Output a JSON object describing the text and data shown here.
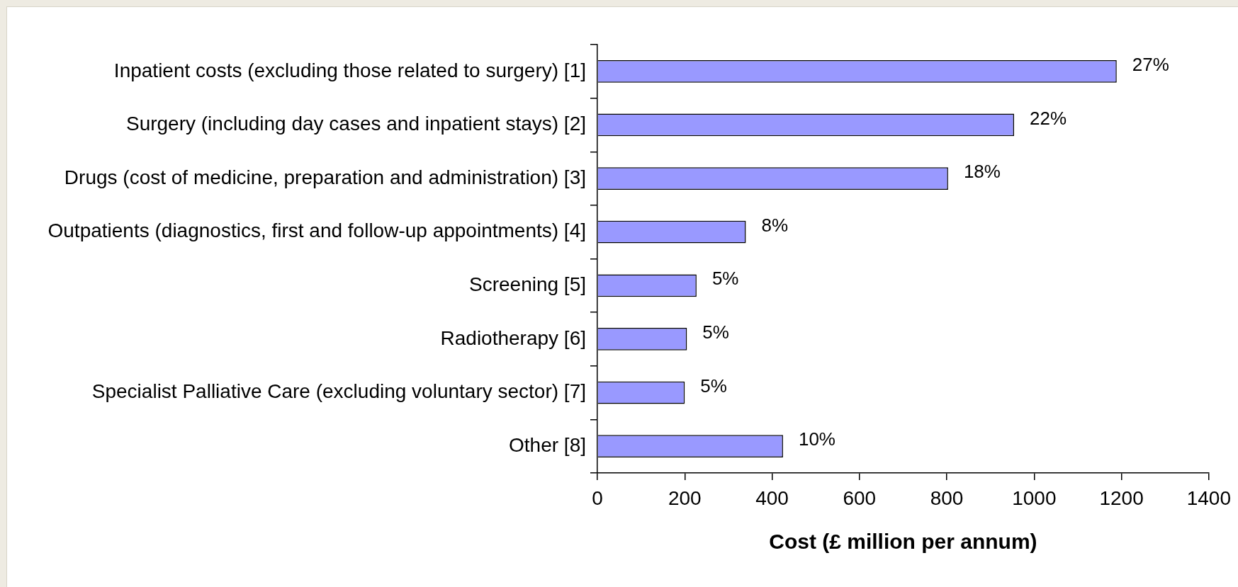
{
  "chart_data": {
    "type": "bar",
    "orientation": "horizontal",
    "categories": [
      "Inpatient costs (excluding those related to surgery) [1]",
      "Surgery (including day cases and inpatient stays) [2]",
      "Drugs (cost of medicine, preparation and administration) [3]",
      "Outpatients (diagnostics, first and follow-up appointments) [4]",
      "Screening [5]",
      "Radiotherapy [6]",
      "Specialist Palliative Care (excluding voluntary sector) [7]",
      "Other [8]"
    ],
    "values": [
      1189,
      954,
      803,
      340,
      227,
      205,
      200,
      425
    ],
    "annotations": [
      {
        "text": "27%",
        "x": 1189,
        "y": "Inpatient costs (excluding those related to surgery) [1]"
      },
      {
        "text": "22%",
        "x": 954,
        "y": "Surgery (including day cases and inpatient stays) [2]"
      },
      {
        "text": "18%",
        "x": 803,
        "y": "Drugs (cost of medicine, preparation and administration) [3]"
      },
      {
        "text": "8%",
        "x": 340,
        "y": "Outpatients (diagnostics, first and follow-up appointments) [4]"
      },
      {
        "text": "5%",
        "x": 227,
        "y": "Screening [5]"
      },
      {
        "text": "5%",
        "x": 205,
        "y": "Radiotherapy [6]"
      },
      {
        "text": "5%",
        "x": 200,
        "y": "Specialist Palliative Care (excluding voluntary sector) [7]"
      },
      {
        "text": "10%",
        "x": 425,
        "y": "Other [8]"
      }
    ],
    "color": "#9999ff",
    "xlabel": "Cost (£ million per annum)",
    "xlim": [
      0,
      1400
    ],
    "xticks": [
      0,
      200,
      400,
      600,
      800,
      1000,
      1200,
      1400
    ],
    "grid": false,
    "legend": false
  }
}
